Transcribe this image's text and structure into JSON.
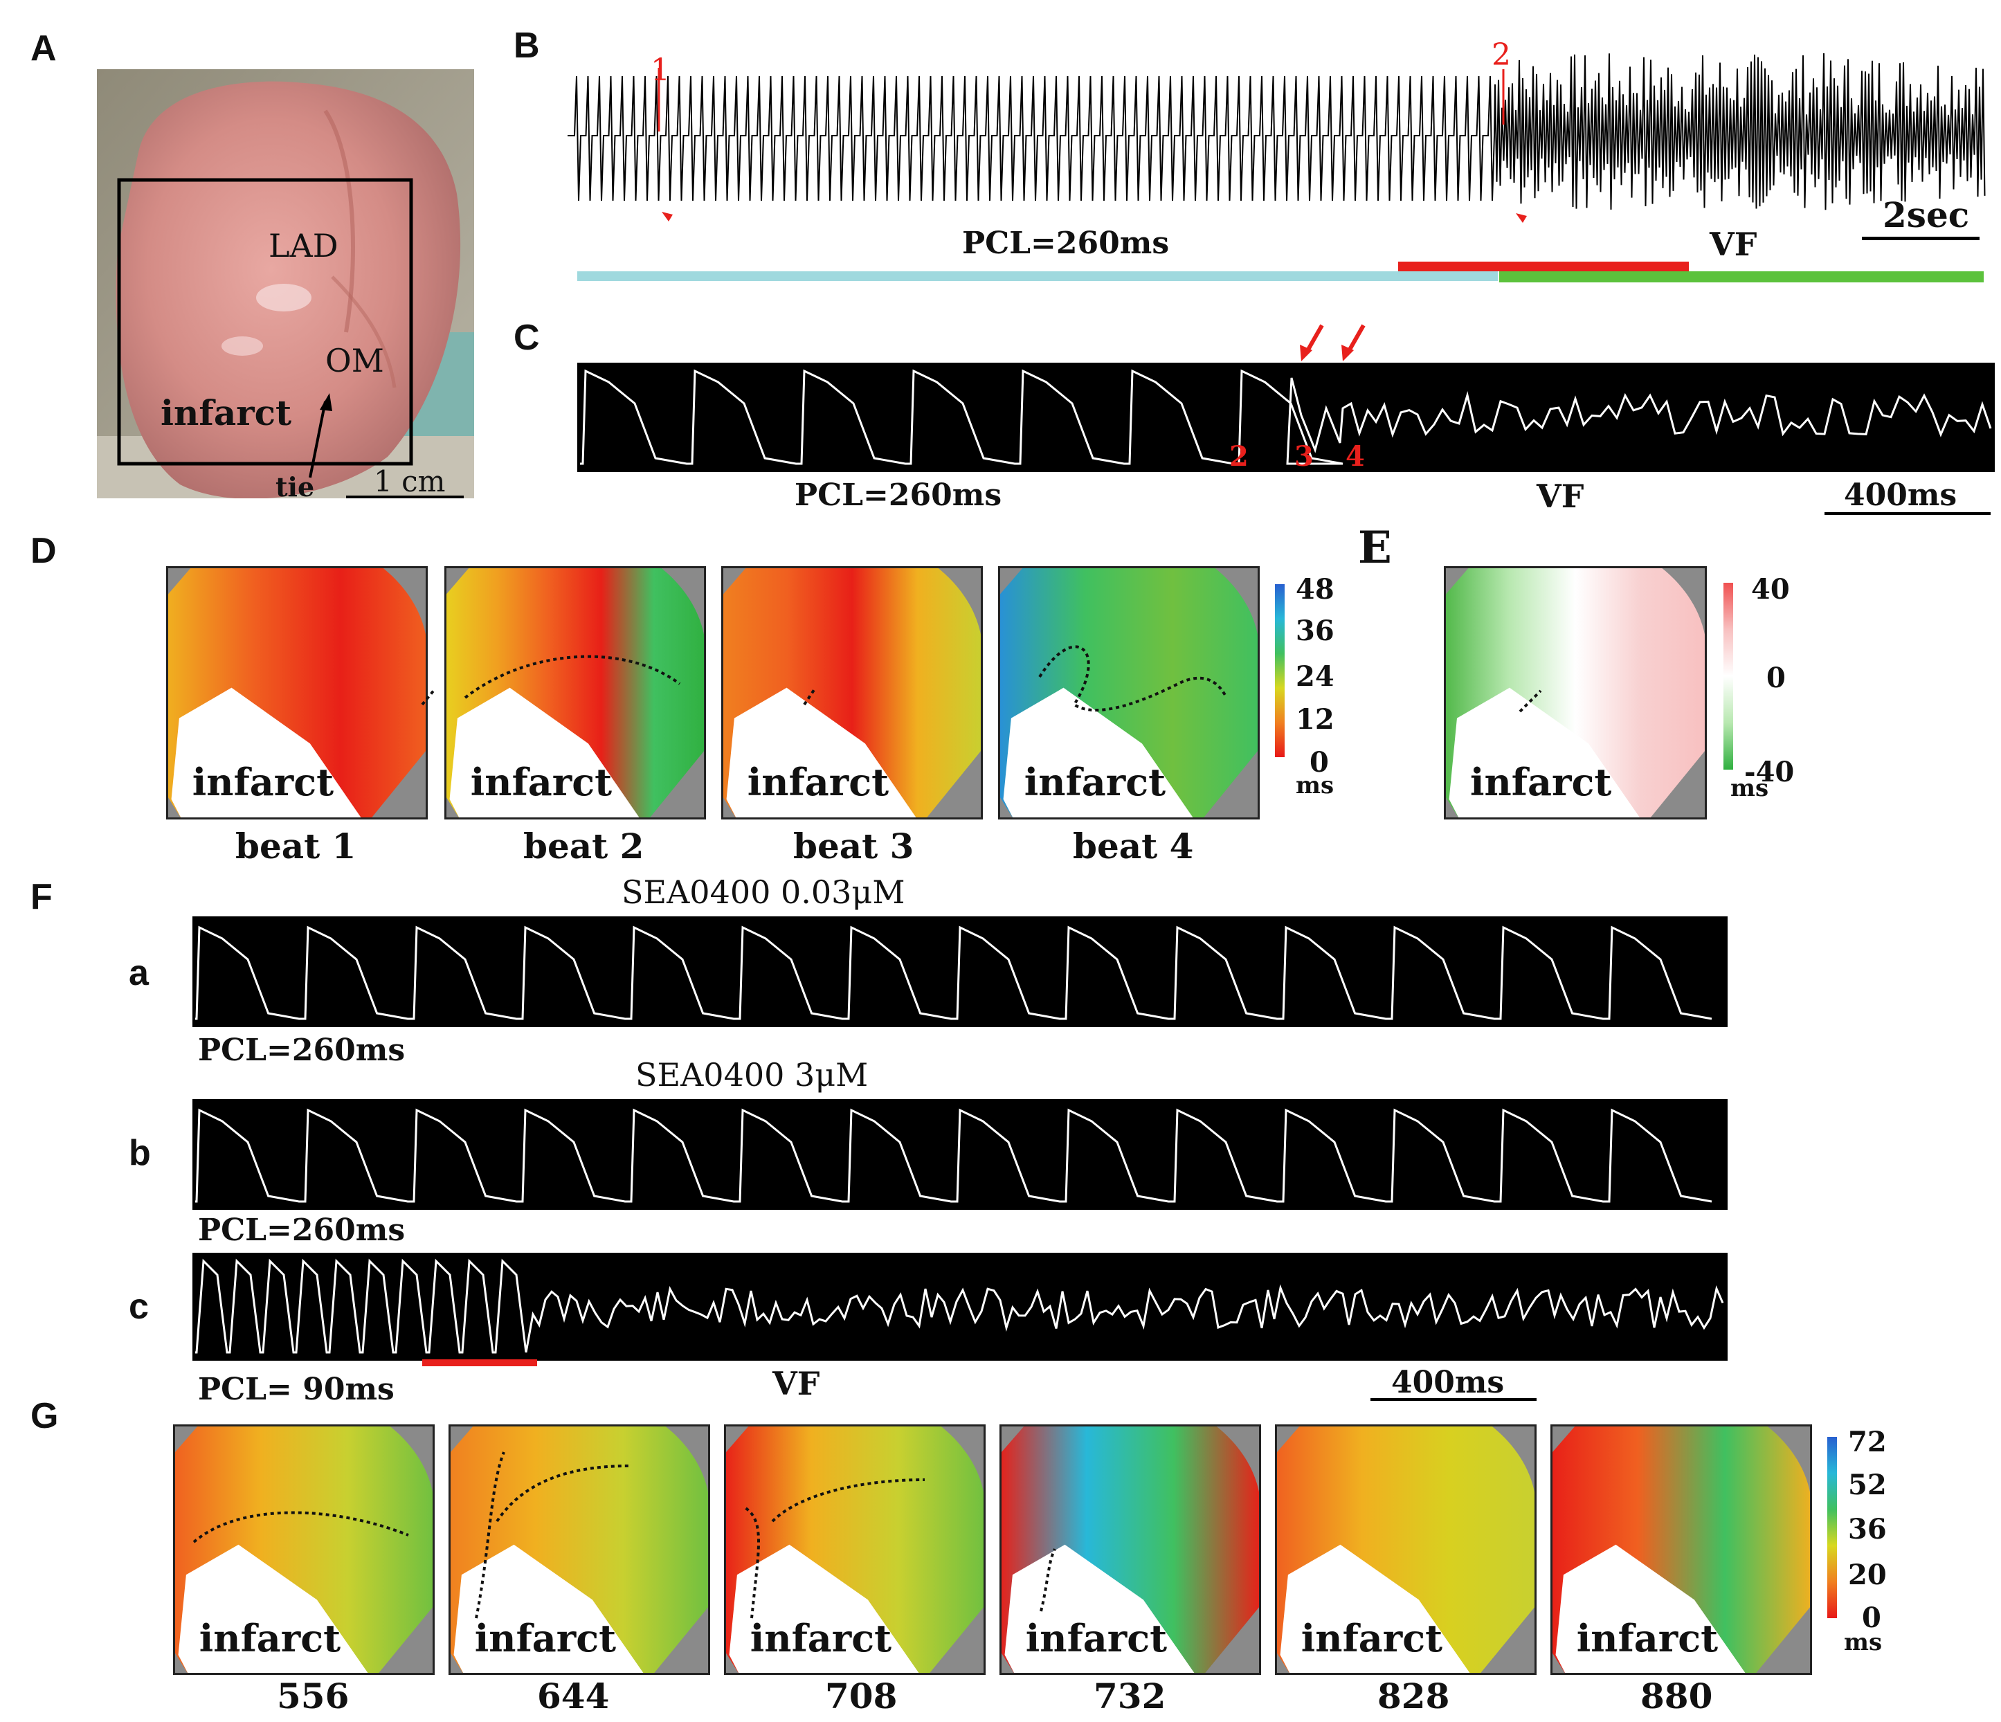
{
  "panels": {
    "A": "A",
    "B": "B",
    "C": "C",
    "D": "D",
    "E": "E",
    "F": "F",
    "G": "G"
  },
  "photo": {
    "lad": "LAD",
    "om": "OM",
    "infarct": "infarct",
    "tie": "tie",
    "scale": "1 cm"
  },
  "panelB": {
    "mark1": "1",
    "mark2": "2",
    "pcl": "PCL=260ms",
    "vf": "VF",
    "scale": "2sec"
  },
  "panelC": {
    "pcl": "PCL=260ms",
    "vf": "VF",
    "scale": "400ms",
    "marks": [
      "2",
      "3",
      "4"
    ]
  },
  "panelD": {
    "beats": [
      "beat 1",
      "beat 2",
      "beat 3",
      "beat 4"
    ],
    "infarct": "infarct",
    "scale": {
      "ticks": [
        "48",
        "36",
        "24",
        "12",
        "0"
      ],
      "unit": "ms"
    }
  },
  "panelE": {
    "infarct": "infarct",
    "scale": {
      "ticks": [
        "40",
        "0",
        "-40"
      ],
      "unit": "ms"
    }
  },
  "panelF": {
    "rows": [
      "a",
      "b",
      "c"
    ],
    "title_a": "SEA0400 0.03μM",
    "title_b": "SEA0400 3μM",
    "pcl_a": "PCL=260ms",
    "pcl_b": "PCL=260ms",
    "pcl_c": "PCL= 90ms",
    "vf": "VF",
    "scale": "400ms"
  },
  "panelG": {
    "times": [
      "556",
      "644",
      "708",
      "732",
      "828",
      "880"
    ],
    "infarct": "infarct",
    "scale": {
      "ticks": [
        "72",
        "52",
        "36",
        "20",
        "0"
      ],
      "unit": "ms"
    }
  },
  "colors": {
    "red": "#e8201c",
    "cyan": "#9fd9de",
    "green": "#5cc23c",
    "trace": "#ffffff"
  }
}
